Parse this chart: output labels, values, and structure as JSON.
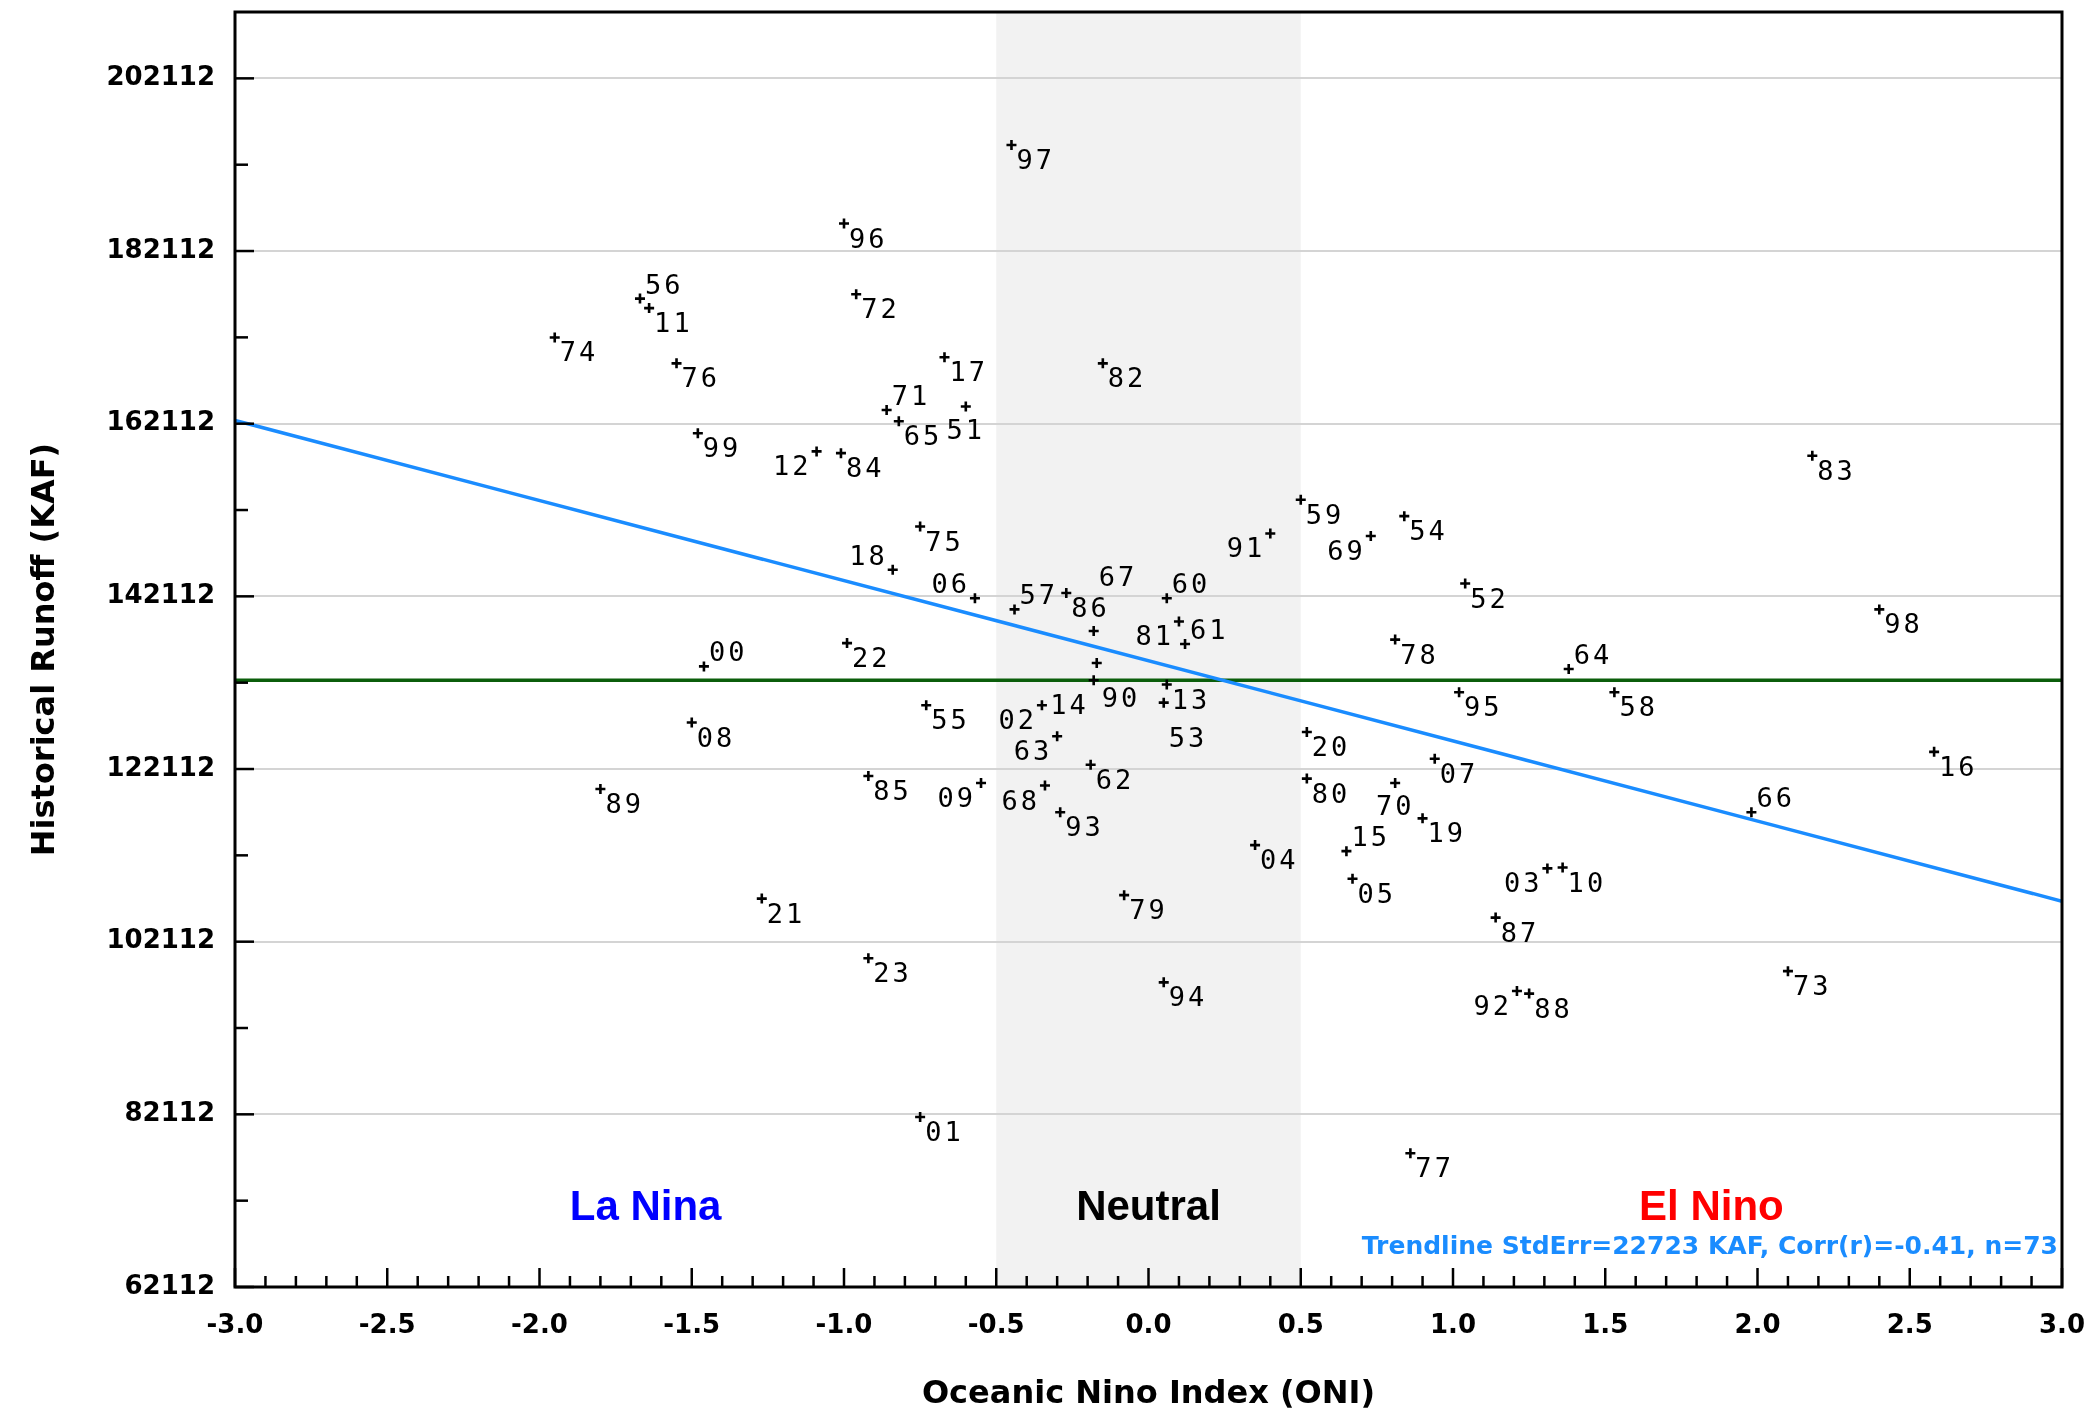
{
  "chart_data": {
    "type": "scatter",
    "xlabel": "Oceanic Nino Index (ONI)",
    "ylabel": "Historical Runoff (KAF)",
    "xlim": [
      -3.0,
      3.0
    ],
    "xticks": [
      {
        "value": -3.0,
        "label": "-3.0"
      },
      {
        "value": -2.9,
        "label": null
      },
      {
        "value": -2.8,
        "label": null
      },
      {
        "value": -2.7,
        "label": null
      },
      {
        "value": -2.6,
        "label": null
      },
      {
        "value": -2.5,
        "label": "-2.5"
      },
      {
        "value": -2.4,
        "label": null
      },
      {
        "value": -2.3,
        "label": null
      },
      {
        "value": -2.2,
        "label": null
      },
      {
        "value": -2.1,
        "label": null
      },
      {
        "value": -2.0,
        "label": "-2.0"
      },
      {
        "value": -1.9,
        "label": null
      },
      {
        "value": -1.8,
        "label": null
      },
      {
        "value": -1.7,
        "label": null
      },
      {
        "value": -1.6,
        "label": null
      },
      {
        "value": -1.5,
        "label": "-1.5"
      },
      {
        "value": -1.4,
        "label": null
      },
      {
        "value": -1.3,
        "label": null
      },
      {
        "value": -1.2,
        "label": null
      },
      {
        "value": -1.1,
        "label": null
      },
      {
        "value": -1.0,
        "label": "-1.0"
      },
      {
        "value": -0.9,
        "label": null
      },
      {
        "value": -0.8,
        "label": null
      },
      {
        "value": -0.7,
        "label": null
      },
      {
        "value": -0.6,
        "label": null
      },
      {
        "value": -0.5,
        "label": "-0.5"
      },
      {
        "value": -0.4,
        "label": null
      },
      {
        "value": -0.3,
        "label": null
      },
      {
        "value": -0.2,
        "label": null
      },
      {
        "value": -0.1,
        "label": null
      },
      {
        "value": 0.0,
        "label": "0.0"
      },
      {
        "value": 0.1,
        "label": null
      },
      {
        "value": 0.2,
        "label": null
      },
      {
        "value": 0.3,
        "label": null
      },
      {
        "value": 0.4,
        "label": null
      },
      {
        "value": 0.5,
        "label": "0.5"
      },
      {
        "value": 0.6,
        "label": null
      },
      {
        "value": 0.7,
        "label": null
      },
      {
        "value": 0.8,
        "label": null
      },
      {
        "value": 0.9,
        "label": null
      },
      {
        "value": 1.0,
        "label": "1.0"
      },
      {
        "value": 1.1,
        "label": null
      },
      {
        "value": 1.2,
        "label": null
      },
      {
        "value": 1.3,
        "label": null
      },
      {
        "value": 1.4,
        "label": null
      },
      {
        "value": 1.5,
        "label": "1.5"
      },
      {
        "value": 1.6,
        "label": null
      },
      {
        "value": 1.7,
        "label": null
      },
      {
        "value": 1.8,
        "label": null
      },
      {
        "value": 1.9,
        "label": null
      },
      {
        "value": 2.0,
        "label": "2.0"
      },
      {
        "value": 2.1,
        "label": null
      },
      {
        "value": 2.2,
        "label": null
      },
      {
        "value": 2.3,
        "label": null
      },
      {
        "value": 2.4,
        "label": null
      },
      {
        "value": 2.5,
        "label": "2.5"
      },
      {
        "value": 2.6,
        "label": null
      },
      {
        "value": 2.7,
        "label": null
      },
      {
        "value": 2.8,
        "label": null
      },
      {
        "value": 2.9,
        "label": null
      },
      {
        "value": 3.0,
        "label": "3.0"
      }
    ],
    "ylim": [
      62112,
      209800
    ],
    "yticks": [
      62112,
      {
        "value": 72112,
        "label": null
      },
      82112,
      {
        "value": 92112,
        "label": null
      },
      102112,
      {
        "value": 112112,
        "label": null
      },
      122112,
      {
        "value": 132112,
        "label": null
      },
      142112,
      {
        "value": 152112,
        "label": null
      },
      162112,
      {
        "value": 172112,
        "label": null
      },
      182112,
      {
        "value": 192112,
        "label": null
      },
      202112
    ],
    "grid": "y",
    "marker": "cross",
    "series": [
      {
        "color": "#000000",
        "x": [
          -0.45,
          -1.0,
          -0.96,
          -1.67,
          -1.64,
          -1.95,
          -1.55,
          -0.67,
          -0.15,
          -0.86,
          -0.82,
          -0.6,
          -1.48,
          -1.09,
          -1.01,
          2.18,
          0.5,
          0.84,
          -0.75,
          0.4,
          0.73,
          -0.84,
          1.04,
          -0.27,
          -0.57,
          0.06,
          -0.44,
          2.4,
          0.1,
          -0.18,
          0.81,
          -0.99,
          0.12,
          -0.17,
          -1.46,
          1.38,
          -0.18,
          0.06,
          1.02,
          1.53,
          0.05,
          -0.73,
          -0.35,
          -1.5,
          0.52,
          -0.3,
          2.58,
          0.94,
          -0.19,
          -0.92,
          0.52,
          -0.55,
          0.81,
          -0.34,
          -1.8,
          -0.29,
          1.98,
          0.9,
          0.35,
          0.65,
          1.31,
          1.36,
          0.67,
          -0.08,
          -1.27,
          1.14,
          -0.92,
          2.1,
          0.05,
          1.21,
          1.25,
          -0.75,
          0.86
        ],
        "values": [
          194400,
          185300,
          177100,
          176600,
          175500,
          172100,
          169100,
          169800,
          169100,
          163700,
          162400,
          164100,
          161000,
          158900,
          158700,
          158400,
          153300,
          151400,
          150200,
          149400,
          149100,
          145200,
          143600,
          142500,
          141900,
          141900,
          140600,
          140600,
          139200,
          138100,
          137100,
          136700,
          136600,
          134400,
          134000,
          133700,
          132400,
          131900,
          131000,
          131000,
          129800,
          129500,
          129500,
          127500,
          126400,
          125900,
          124100,
          123300,
          122600,
          121300,
          121000,
          120500,
          120500,
          120200,
          119800,
          117100,
          117100,
          116400,
          113300,
          112600,
          110600,
          110700,
          109400,
          107500,
          107100,
          104900,
          100200,
          98700,
          97400,
          96400,
          96100,
          81800,
          77600
        ]
      },
      {
        "type": "line",
        "color": "#1a8cff",
        "marker": "none",
        "x": [
          -3.0,
          3.0
        ],
        "values": [
          162500,
          106800
        ]
      }
    ],
    "ref_lines": [
      {
        "axis": "y",
        "value": 132400,
        "color": "#0b5e0b"
      }
    ],
    "bands": [
      {
        "axis": "x",
        "from": -0.5,
        "to": 0.5,
        "label": "Neutral",
        "color": "#f2f2f2"
      }
    ],
    "annotations": [
      "La Nina",
      "El Nino",
      "Trendline StdErr=22723 KAF, Corr(r)=-0.41, n=73",
      {
        "text": "97",
        "x": -0.45,
        "y": 194400
      },
      {
        "text": "96",
        "x": -1.0,
        "y": 185300
      },
      {
        "text": "72",
        "x": -0.96,
        "y": 177100
      },
      {
        "text": "56",
        "x": -1.67,
        "y": 176600
      },
      {
        "text": "11",
        "x": -1.64,
        "y": 175500
      },
      {
        "text": "74",
        "x": -1.95,
        "y": 172100
      },
      {
        "text": "76",
        "x": -1.55,
        "y": 169100
      },
      {
        "text": "17",
        "x": -0.67,
        "y": 169800
      },
      {
        "text": "82",
        "x": -0.15,
        "y": 169100
      },
      {
        "text": "71",
        "x": -0.86,
        "y": 163700
      },
      {
        "text": "65",
        "x": -0.82,
        "y": 162400
      },
      {
        "text": "51",
        "x": -0.6,
        "y": 164100
      },
      {
        "text": "99",
        "x": -1.48,
        "y": 161000
      },
      {
        "text": "12",
        "x": -1.09,
        "y": 158900
      },
      {
        "text": "84",
        "x": -1.01,
        "y": 158700
      },
      {
        "text": "83",
        "x": 2.18,
        "y": 158400
      },
      {
        "text": "59",
        "x": 0.5,
        "y": 153300
      },
      {
        "text": "54",
        "x": 0.84,
        "y": 151400
      },
      {
        "text": "75",
        "x": -0.75,
        "y": 150200
      },
      {
        "text": "91",
        "x": 0.4,
        "y": 149400
      },
      {
        "text": "69",
        "x": 0.73,
        "y": 149100
      },
      {
        "text": "18",
        "x": -0.84,
        "y": 145200
      },
      {
        "text": "52",
        "x": 1.04,
        "y": 143600
      },
      {
        "text": "86",
        "x": -0.27,
        "y": 142500
      },
      {
        "text": "06",
        "x": -0.57,
        "y": 141900
      },
      {
        "text": "60",
        "x": 0.06,
        "y": 141900
      },
      {
        "text": "57",
        "x": -0.44,
        "y": 140600
      },
      {
        "text": "98",
        "x": 2.4,
        "y": 140600
      },
      {
        "text": "81",
        "x": 0.1,
        "y": 139200
      },
      {
        "text": "67",
        "x": -0.18,
        "y": 138100
      },
      {
        "text": "78",
        "x": 0.81,
        "y": 137100
      },
      {
        "text": "22",
        "x": -0.99,
        "y": 136700
      },
      {
        "text": "61",
        "x": 0.12,
        "y": 136600
      },
      {
        "text": "90",
        "x": -0.17,
        "y": 134400
      },
      {
        "text": "00",
        "x": -1.46,
        "y": 134000
      },
      {
        "text": "64",
        "x": 1.38,
        "y": 133700
      },
      {
        "text": "14",
        "x": -0.18,
        "y": 132400
      },
      {
        "text": "13",
        "x": 0.06,
        "y": 131900
      },
      {
        "text": "95",
        "x": 1.02,
        "y": 131000
      },
      {
        "text": "58",
        "x": 1.53,
        "y": 131000
      },
      {
        "text": "53",
        "x": 0.05,
        "y": 129800
      },
      {
        "text": "55",
        "x": -0.73,
        "y": 129500
      },
      {
        "text": "02",
        "x": -0.35,
        "y": 129500
      },
      {
        "text": "08",
        "x": -1.5,
        "y": 127500
      },
      {
        "text": "20",
        "x": 0.52,
        "y": 126400
      },
      {
        "text": "63",
        "x": -0.3,
        "y": 125900
      },
      {
        "text": "16",
        "x": 2.58,
        "y": 124100
      },
      {
        "text": "07",
        "x": 0.94,
        "y": 123300
      },
      {
        "text": "62",
        "x": -0.19,
        "y": 122600
      },
      {
        "text": "85",
        "x": -0.92,
        "y": 121300
      },
      {
        "text": "80",
        "x": 0.52,
        "y": 121000
      },
      {
        "text": "09",
        "x": -0.55,
        "y": 120500
      },
      {
        "text": "70",
        "x": 0.81,
        "y": 120500
      },
      {
        "text": "68",
        "x": -0.34,
        "y": 120200
      },
      {
        "text": "89",
        "x": -1.8,
        "y": 119800
      },
      {
        "text": "93",
        "x": -0.29,
        "y": 117100
      },
      {
        "text": "66",
        "x": 1.98,
        "y": 117100
      },
      {
        "text": "19",
        "x": 0.9,
        "y": 116400
      },
      {
        "text": "04",
        "x": 0.35,
        "y": 113300
      },
      {
        "text": "15",
        "x": 0.65,
        "y": 112600
      },
      {
        "text": "03",
        "x": 1.31,
        "y": 110600
      },
      {
        "text": "10",
        "x": 1.36,
        "y": 110700
      },
      {
        "text": "05",
        "x": 0.67,
        "y": 109400
      },
      {
        "text": "79",
        "x": -0.08,
        "y": 107500
      },
      {
        "text": "21",
        "x": -1.27,
        "y": 107100
      },
      {
        "text": "87",
        "x": 1.14,
        "y": 104900
      },
      {
        "text": "23",
        "x": -0.92,
        "y": 100200
      },
      {
        "text": "73",
        "x": 2.1,
        "y": 98700
      },
      {
        "text": "94",
        "x": 0.05,
        "y": 97400
      },
      {
        "text": "92",
        "x": 1.21,
        "y": 96400
      },
      {
        "text": "88",
        "x": 1.25,
        "y": 96100
      },
      {
        "text": "01",
        "x": -0.75,
        "y": 81800
      },
      {
        "text": "77",
        "x": 0.86,
        "y": 77600
      }
    ]
  }
}
